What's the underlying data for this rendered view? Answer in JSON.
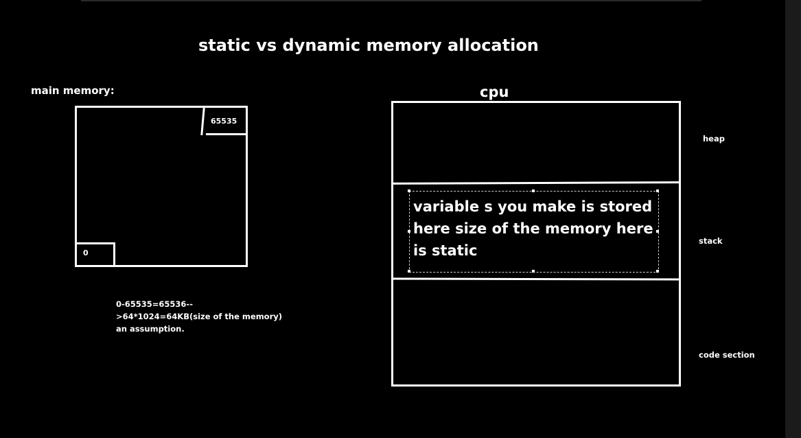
{
  "title": "static vs dynamic memory allocation",
  "main_memory": {
    "label": "main memory:",
    "high_address": "65535",
    "low_address": "0",
    "note": "0-65535=65536-->64*1024=64KB(size of the memory) an assumption."
  },
  "cpu": {
    "label": "cpu",
    "sections": {
      "heap": "heap",
      "stack": "stack",
      "code": "code section"
    },
    "stack_text": "variable s you make is stored here size of the memory here is static"
  },
  "colors": {
    "background": "#000000",
    "foreground": "#ffffff"
  }
}
